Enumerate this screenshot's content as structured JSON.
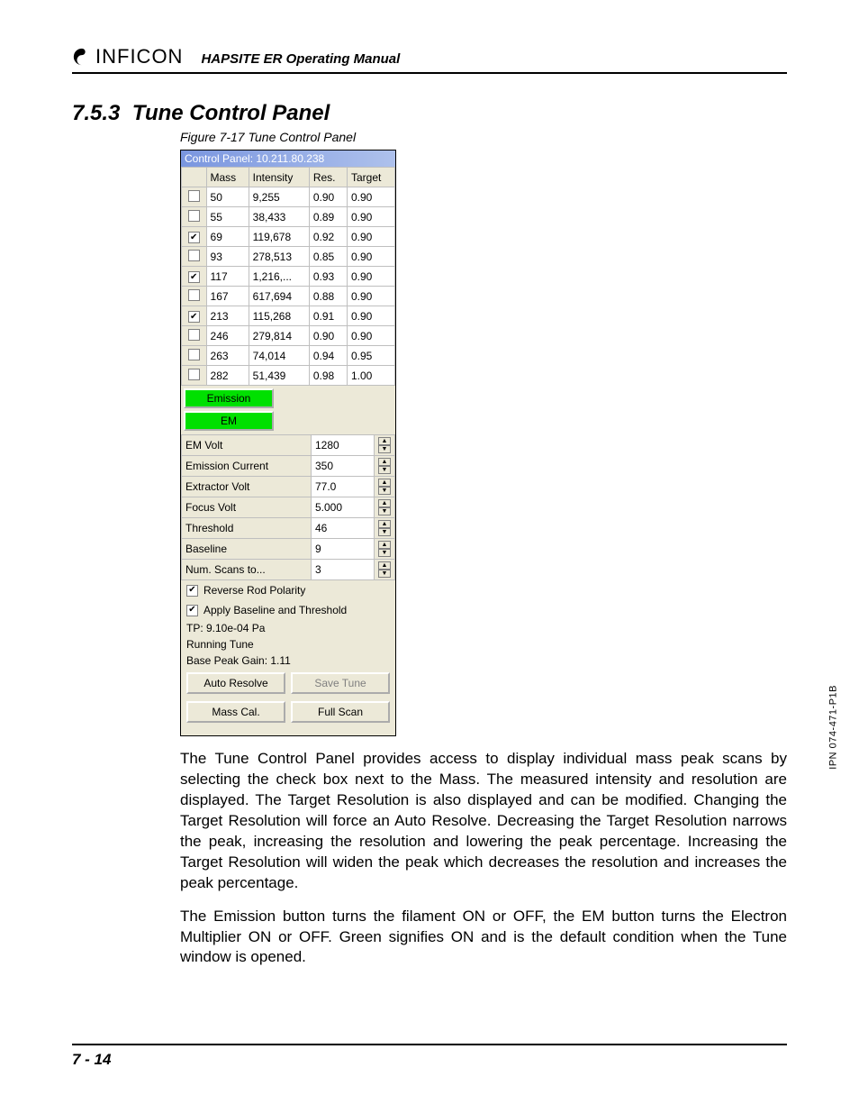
{
  "header": {
    "brand": "INFICON",
    "manual": "HAPSITE ER Operating Manual"
  },
  "section": {
    "number": "7.5.3",
    "title": "Tune Control Panel"
  },
  "figure": {
    "caption": "Figure 7-17  Tune Control Panel"
  },
  "panel": {
    "title": "Control Panel: 10.211.80.238",
    "columns": [
      "",
      "Mass",
      "Intensity",
      "Res.",
      "Target"
    ],
    "rows": [
      {
        "checked": false,
        "mass": "50",
        "intensity": "9,255",
        "res": "0.90",
        "target": "0.90"
      },
      {
        "checked": false,
        "mass": "55",
        "intensity": "38,433",
        "res": "0.89",
        "target": "0.90"
      },
      {
        "checked": true,
        "mass": "69",
        "intensity": "119,678",
        "res": "0.92",
        "target": "0.90"
      },
      {
        "checked": false,
        "mass": "93",
        "intensity": "278,513",
        "res": "0.85",
        "target": "0.90"
      },
      {
        "checked": true,
        "mass": "117",
        "intensity": "1,216,...",
        "res": "0.93",
        "target": "0.90"
      },
      {
        "checked": false,
        "mass": "167",
        "intensity": "617,694",
        "res": "0.88",
        "target": "0.90"
      },
      {
        "checked": true,
        "mass": "213",
        "intensity": "115,268",
        "res": "0.91",
        "target": "0.90"
      },
      {
        "checked": false,
        "mass": "246",
        "intensity": "279,814",
        "res": "0.90",
        "target": "0.90"
      },
      {
        "checked": false,
        "mass": "263",
        "intensity": "74,014",
        "res": "0.94",
        "target": "0.95"
      },
      {
        "checked": false,
        "mass": "282",
        "intensity": "51,439",
        "res": "0.98",
        "target": "1.00"
      }
    ],
    "status": {
      "emission": "Emission",
      "em": "EM",
      "on_color": "#00e000"
    },
    "params": [
      {
        "label": "EM Volt",
        "value": "1280"
      },
      {
        "label": "Emission Current",
        "value": "350"
      },
      {
        "label": "Extractor Volt",
        "value": "77.0"
      },
      {
        "label": "Focus Volt",
        "value": "5.000"
      },
      {
        "label": "Threshold",
        "value": "46"
      },
      {
        "label": "Baseline",
        "value": "9"
      },
      {
        "label": "Num. Scans to...",
        "value": "3"
      }
    ],
    "checks": {
      "reverse": {
        "label": "Reverse Rod Polarity",
        "checked": true
      },
      "apply": {
        "label": "Apply Baseline and Threshold",
        "checked": true
      }
    },
    "info": {
      "tp": "TP: 9.10e-04 Pa",
      "running": "Running Tune",
      "gain": "Base Peak Gain: 1.11"
    },
    "buttons": {
      "auto_resolve": "Auto Resolve",
      "save_tune": "Save Tune",
      "mass_cal": "Mass Cal.",
      "full_scan": "Full Scan"
    }
  },
  "paragraphs": {
    "p1": "The Tune Control Panel provides access to display individual mass peak scans by selecting the check box next to the Mass. The measured intensity and resolution are displayed. The Target Resolution is also displayed and can be modified. Changing the Target Resolution will force an Auto Resolve. Decreasing the Target Resolution narrows the peak, increasing the resolution and lowering the peak percentage. Increasing the Target Resolution will widen the peak which decreases the resolution and increases the peak percentage.",
    "p2": "The Emission button turns the filament ON or OFF, the EM button turns the Electron Multiplier ON or OFF. Green signifies ON and is the default condition when the Tune window is opened."
  },
  "footer": {
    "page": "7 - 14"
  },
  "sidecode": "IPN 074-471-P1B",
  "colors": {
    "panel_bg": "#ece9d8",
    "titlebar_start": "#7a96df",
    "titlebar_end": "#aec1ec",
    "status_on": "#00e000"
  }
}
